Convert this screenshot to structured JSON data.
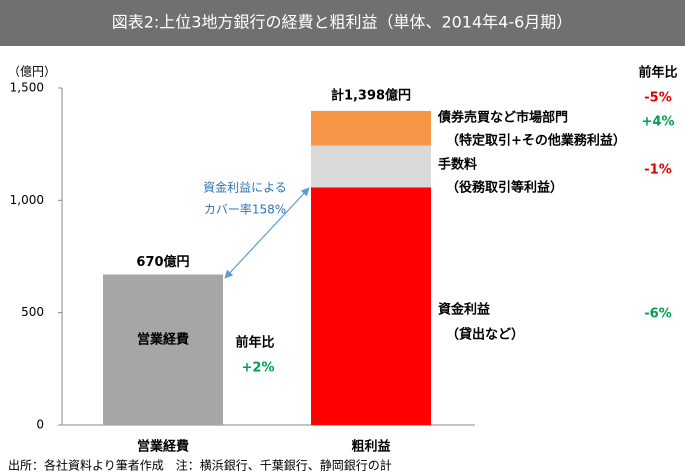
{
  "chart_data": {
    "type": "bar",
    "stacked": true,
    "title": "図表2:上位3地方銀行の経費と粗利益（単体、2014年4-6月期）",
    "y_label": "（億円）",
    "yoy_header": "前年比",
    "categories": [
      "営業経費",
      "粗利益"
    ],
    "ylim": [
      0,
      1500
    ],
    "yticks": [
      0,
      500,
      {
        "value": 1000,
        "label": "1,000"
      },
      {
        "value": 1500,
        "label": "1,500"
      }
    ],
    "series": [
      {
        "name": "営業経費",
        "color": "#a6a6a6",
        "values": [
          670,
          null
        ],
        "value_labels": [
          "670億円",
          null
        ],
        "yoy": 2,
        "yoy_label": "+2%",
        "yoy_color": "#00a050"
      },
      {
        "name": "資金利益",
        "sublabel": "（貸出など）",
        "color": "#ff0000",
        "values": [
          null,
          1058
        ],
        "yoy": -6,
        "yoy_label": "-6%",
        "yoy_color": "#00a050"
      },
      {
        "name": "手数料",
        "sublabel": "（役務取引等利益）",
        "color": "#d9d9d9",
        "values": [
          null,
          186
        ],
        "yoy": -1,
        "yoy_label": "-1%",
        "yoy_color": "#e00000"
      },
      {
        "name": "債券売買など市場部門",
        "sublabel": "（特定取引+その他業務利益）",
        "color": "#f79646",
        "values": [
          null,
          154
        ],
        "yoy": 4,
        "yoy_label": "+4%",
        "yoy_color": "#00a050"
      }
    ],
    "total": {
      "value": 1398,
      "label": "計1,398億円",
      "yoy": -5,
      "yoy_label": "-5%",
      "yoy_color": "#e00000"
    },
    "annotation": [
      "資金利益による",
      "カバー率158%"
    ],
    "footnote": "出所：各社資料より筆者作成　注：横浜銀行、千葉銀行、静岡銀行の計"
  }
}
